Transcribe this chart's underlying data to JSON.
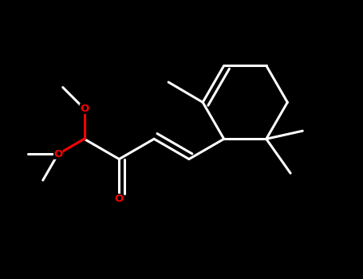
{
  "background_color": "#000000",
  "bond_color": "#ffffff",
  "heteroatom_color": "#ff0000",
  "bond_width": 2.2,
  "figure_bg": "#000000",
  "xlim": [
    -0.05,
    1.0
  ],
  "ylim": [
    -0.15,
    0.75
  ]
}
